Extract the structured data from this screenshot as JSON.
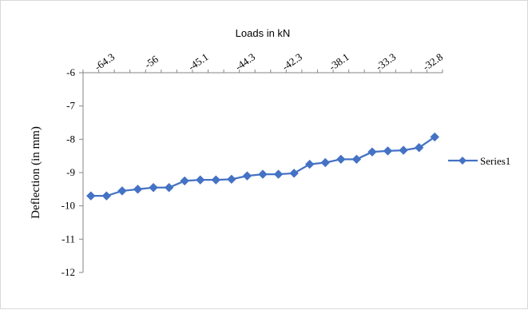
{
  "chart_data": {
    "type": "line",
    "title": "",
    "xlabel": "Loads in kN",
    "ylabel": "Deflection (in mm)",
    "x_axis_position": "top",
    "x_tick_labels": [
      "-64.3",
      "-56",
      "-45.1",
      "-44.3",
      "-42.3",
      "-38.1",
      "-33.3",
      "-32.8"
    ],
    "y_ticks": [
      -6,
      -7,
      -8,
      -9,
      -10,
      -11,
      -12
    ],
    "ylim": [
      -12,
      -6
    ],
    "grid": false,
    "legend_position": "right",
    "series": [
      {
        "name": "Series1",
        "color": "#4472c4",
        "marker": "diamond",
        "values": [
          -9.7,
          -9.7,
          -9.55,
          -9.5,
          -9.45,
          -9.45,
          -9.25,
          -9.22,
          -9.22,
          -9.2,
          -9.1,
          -9.05,
          -9.05,
          -9.02,
          -8.75,
          -8.7,
          -8.6,
          -8.6,
          -8.38,
          -8.35,
          -8.33,
          -8.25,
          -7.93
        ]
      }
    ]
  }
}
